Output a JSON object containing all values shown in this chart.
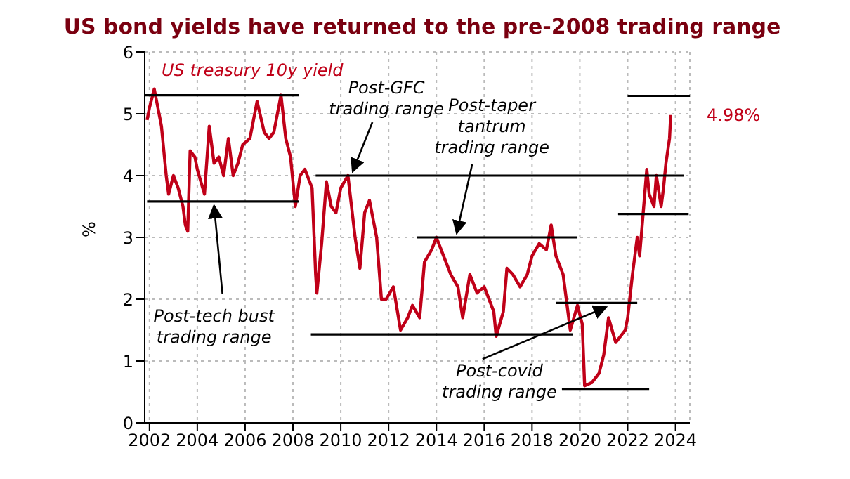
{
  "chart_data": {
    "type": "line",
    "title": "US bond yields have returned to the pre-2008 trading range",
    "ylabel": "%",
    "xlim": [
      2001.8,
      2024.6
    ],
    "xticks": [
      2002,
      2004,
      2006,
      2008,
      2010,
      2012,
      2014,
      2016,
      2018,
      2020,
      2022,
      2024
    ],
    "ylim": [
      0,
      6
    ],
    "yticks": [
      0,
      1,
      2,
      3,
      4,
      5,
      6
    ],
    "grid": true,
    "legend": "top left",
    "marker": "none",
    "line_style": "solid",
    "series": [
      {
        "name": "US treasury 10y yield",
        "color": "#c00018",
        "x": [
          2001.9,
          2002.0,
          2002.2,
          2002.3,
          2002.5,
          2002.7,
          2002.8,
          2003.0,
          2003.2,
          2003.4,
          2003.5,
          2003.6,
          2003.7,
          2003.9,
          2004.0,
          2004.3,
          2004.5,
          2004.7,
          2004.9,
          2005.1,
          2005.3,
          2005.5,
          2005.7,
          2005.9,
          2006.2,
          2006.5,
          2006.8,
          2007.0,
          2007.2,
          2007.5,
          2007.7,
          2007.9,
          2008.1,
          2008.3,
          2008.5,
          2008.8,
          2008.95,
          2009.0,
          2009.2,
          2009.4,
          2009.6,
          2009.8,
          2010.0,
          2010.3,
          2010.6,
          2010.8,
          2011.0,
          2011.2,
          2011.5,
          2011.7,
          2011.9,
          2012.2,
          2012.5,
          2012.8,
          2013.0,
          2013.3,
          2013.5,
          2013.8,
          2014.0,
          2014.3,
          2014.6,
          2014.9,
          2015.1,
          2015.4,
          2015.7,
          2016.0,
          2016.4,
          2016.5,
          2016.8,
          2016.95,
          2017.2,
          2017.5,
          2017.8,
          2018.0,
          2018.3,
          2018.6,
          2018.8,
          2019.0,
          2019.3,
          2019.6,
          2019.9,
          2020.1,
          2020.2,
          2020.5,
          2020.8,
          2021.0,
          2021.2,
          2021.5,
          2021.9,
          2022.0,
          2022.2,
          2022.4,
          2022.5,
          2022.8,
          2022.9,
          2023.1,
          2023.2,
          2023.4,
          2023.5,
          2023.6,
          2023.75,
          2023.8
        ],
        "values": [
          4.9,
          5.1,
          5.4,
          5.2,
          4.8,
          4.0,
          3.7,
          4.0,
          3.8,
          3.5,
          3.2,
          3.1,
          4.4,
          4.3,
          4.1,
          3.7,
          4.8,
          4.2,
          4.3,
          4.0,
          4.6,
          4.0,
          4.2,
          4.5,
          4.6,
          5.2,
          4.7,
          4.6,
          4.7,
          5.3,
          4.6,
          4.3,
          3.5,
          4.0,
          4.1,
          3.8,
          2.4,
          2.1,
          2.9,
          3.9,
          3.5,
          3.4,
          3.8,
          4.0,
          3.0,
          2.5,
          3.4,
          3.6,
          3.0,
          2.0,
          2.0,
          2.2,
          1.5,
          1.7,
          1.9,
          1.7,
          2.6,
          2.8,
          3.0,
          2.7,
          2.4,
          2.2,
          1.7,
          2.4,
          2.1,
          2.2,
          1.8,
          1.4,
          1.8,
          2.5,
          2.4,
          2.2,
          2.4,
          2.7,
          2.9,
          2.8,
          3.2,
          2.7,
          2.4,
          1.5,
          1.9,
          1.6,
          0.6,
          0.65,
          0.8,
          1.1,
          1.7,
          1.3,
          1.5,
          1.7,
          2.4,
          3.0,
          2.7,
          4.1,
          3.7,
          3.5,
          4.0,
          3.5,
          3.8,
          4.2,
          4.6,
          4.98
        ]
      },
      {
        "color": "#000000",
        "x": [
          2001.8,
          2008.25
        ],
        "values": [
          5.3,
          5.3
        ]
      },
      {
        "color": "#000000",
        "x": [
          2001.9,
          2008.25
        ],
        "values": [
          3.58,
          3.58
        ]
      },
      {
        "color": "#000000",
        "x": [
          2008.95,
          2024.35
        ],
        "values": [
          4.0,
          4.0
        ]
      },
      {
        "color": "#000000",
        "x": [
          2008.75,
          2019.7
        ],
        "values": [
          1.43,
          1.43
        ]
      },
      {
        "color": "#000000",
        "x": [
          2013.2,
          2019.9
        ],
        "values": [
          3.0,
          3.0
        ]
      },
      {
        "color": "#000000",
        "x": [
          2019.0,
          2022.4
        ],
        "values": [
          1.94,
          1.94
        ]
      },
      {
        "color": "#000000",
        "x": [
          2019.25,
          2022.9
        ],
        "values": [
          0.55,
          0.55
        ]
      },
      {
        "color": "#000000",
        "x": [
          2022.0,
          2024.6
        ],
        "values": [
          5.29,
          5.29
        ]
      },
      {
        "color": "#000000",
        "x": [
          2021.6,
          2024.55
        ],
        "values": [
          3.38,
          3.38
        ]
      }
    ],
    "annotations": [
      {
        "text": "Post-GFC\ntrading range",
        "x": 2010.5,
        "y": 4.0
      },
      {
        "text": "Post-taper\ntantrum\ntrading range",
        "x": 2014.85,
        "y": 3.0
      },
      {
        "text": "Post-tech bust\ntrading range",
        "x": 2004.7,
        "y": 3.58
      },
      {
        "text": "Post-covid\ntrading range",
        "x": 2021.1,
        "y": 1.94
      },
      {
        "text": "4.98%",
        "x": 2023.8,
        "y": 4.98
      }
    ]
  }
}
